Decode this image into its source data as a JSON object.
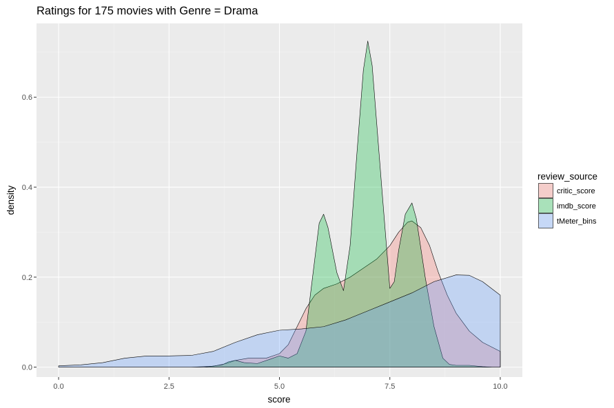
{
  "chart_data": {
    "type": "area",
    "title": "Ratings for 175 movies with Genre = Drama",
    "xlabel": "score",
    "ylabel": "density",
    "xlim": [
      -0.5,
      10.5
    ],
    "ylim": [
      -0.022,
      0.764
    ],
    "x_ticks": [
      0.0,
      2.5,
      5.0,
      7.5,
      10.0
    ],
    "x_tick_labels": [
      "0.0",
      "2.5",
      "5.0",
      "7.5",
      "10.0"
    ],
    "y_ticks": [
      0.0,
      0.2,
      0.4,
      0.6
    ],
    "y_tick_labels": [
      "0.0",
      "0.2",
      "0.4",
      "0.6"
    ],
    "grid": true,
    "legend": {
      "title": "review_source",
      "position": "right"
    },
    "series": [
      {
        "name": "critic_score",
        "color": "#F8766D",
        "x": [
          0.0,
          3.0,
          3.5,
          3.8,
          4.0,
          4.3,
          4.7,
          5.0,
          5.2,
          5.4,
          5.6,
          5.8,
          6.0,
          6.3,
          6.6,
          6.9,
          7.2,
          7.5,
          7.7,
          7.9,
          8.0,
          8.2,
          8.4,
          8.6,
          8.8,
          9.0,
          9.3,
          9.6,
          10.0
        ],
        "y": [
          0.0,
          0.0,
          0.002,
          0.008,
          0.015,
          0.02,
          0.02,
          0.03,
          0.05,
          0.09,
          0.13,
          0.16,
          0.175,
          0.185,
          0.2,
          0.22,
          0.24,
          0.27,
          0.3,
          0.322,
          0.325,
          0.31,
          0.27,
          0.21,
          0.16,
          0.12,
          0.08,
          0.055,
          0.035
        ]
      },
      {
        "name": "imdb_score",
        "color": "#00BA38",
        "x": [
          3.3,
          3.7,
          3.85,
          4.0,
          4.2,
          4.5,
          4.8,
          5.0,
          5.2,
          5.4,
          5.6,
          5.75,
          5.9,
          6.0,
          6.1,
          6.3,
          6.45,
          6.6,
          6.75,
          6.9,
          7.0,
          7.1,
          7.3,
          7.5,
          7.6,
          7.7,
          7.85,
          8.0,
          8.1,
          8.3,
          8.5,
          8.7,
          8.85,
          9.0,
          9.3,
          9.6,
          9.8
        ],
        "y": [
          0.0,
          0.005,
          0.012,
          0.015,
          0.01,
          0.008,
          0.018,
          0.025,
          0.02,
          0.03,
          0.08,
          0.2,
          0.32,
          0.34,
          0.31,
          0.21,
          0.17,
          0.27,
          0.47,
          0.66,
          0.725,
          0.67,
          0.42,
          0.175,
          0.19,
          0.26,
          0.34,
          0.365,
          0.33,
          0.2,
          0.09,
          0.02,
          0.006,
          0.004,
          0.004,
          0.001,
          0.0
        ]
      },
      {
        "name": "tMeter_bins",
        "color": "#619CFF",
        "x": [
          0.0,
          0.5,
          1.0,
          1.5,
          2.0,
          2.5,
          3.0,
          3.5,
          4.0,
          4.5,
          5.0,
          5.5,
          6.0,
          6.5,
          7.0,
          7.5,
          8.0,
          8.5,
          9.0,
          9.3,
          9.6,
          10.0
        ],
        "y": [
          0.003,
          0.005,
          0.01,
          0.02,
          0.025,
          0.025,
          0.026,
          0.035,
          0.055,
          0.072,
          0.082,
          0.085,
          0.09,
          0.105,
          0.125,
          0.145,
          0.165,
          0.19,
          0.205,
          0.204,
          0.19,
          0.16
        ]
      }
    ]
  }
}
